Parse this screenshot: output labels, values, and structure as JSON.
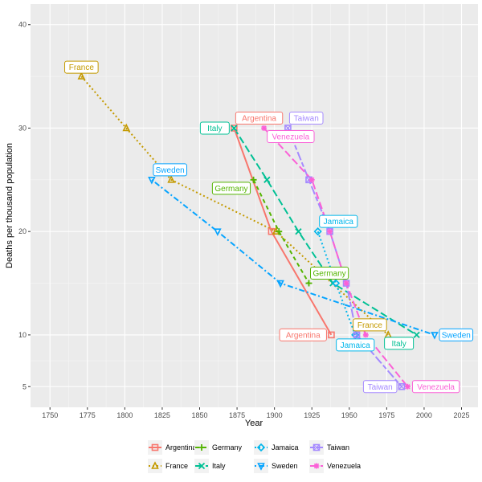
{
  "chart_data": {
    "type": "line",
    "title": "",
    "xlabel": "Year",
    "ylabel": "Deaths per thousand population",
    "xlim": [
      1737,
      2036
    ],
    "ylim": [
      3,
      42
    ],
    "xticks": [
      1750,
      1775,
      1800,
      1825,
      1850,
      1875,
      1900,
      1925,
      1950,
      1975,
      2000,
      2025
    ],
    "yticks": [
      5,
      10,
      20,
      30,
      40
    ],
    "grid": true,
    "background": "#ebebeb",
    "legend_position": "bottom",
    "series": [
      {
        "name": "Argentina",
        "color": "#f8766d",
        "dash": "solid",
        "shape": "square",
        "x": [
          1873,
          1898,
          1938
        ],
        "y": [
          30,
          20,
          10
        ]
      },
      {
        "name": "France",
        "color": "#c49a00",
        "dash": "dotted",
        "shape": "triangle-up",
        "x": [
          1771,
          1801,
          1831,
          1901,
          1976
        ],
        "y": [
          35,
          30,
          25,
          20,
          10
        ]
      },
      {
        "name": "Germany",
        "color": "#53b400",
        "dash": "dashed",
        "shape": "plus",
        "x": [
          1886,
          1903,
          1923
        ],
        "y": [
          25,
          20,
          15
        ]
      },
      {
        "name": "Italy",
        "color": "#00c094",
        "dash": "longdash",
        "shape": "cross",
        "x": [
          1873,
          1895,
          1916,
          1939,
          1995
        ],
        "y": [
          30,
          25,
          20,
          15,
          10
        ]
      },
      {
        "name": "Jamaica",
        "color": "#00b6eb",
        "dash": "dotted",
        "shape": "diamond",
        "x": [
          1929,
          1941,
          1954
        ],
        "y": [
          20,
          15,
          10
        ]
      },
      {
        "name": "Sweden",
        "color": "#06a4ff",
        "dash": "dotdash",
        "shape": "triangle-down",
        "x": [
          1818,
          1862,
          1904,
          2007
        ],
        "y": [
          25,
          20,
          15,
          10
        ]
      },
      {
        "name": "Taiwan",
        "color": "#a58aff",
        "dash": "twodash",
        "shape": "square-cross",
        "x": [
          1909,
          1923,
          1937,
          1948,
          1955,
          1985
        ],
        "y": [
          30,
          25,
          20,
          15,
          10,
          5
        ]
      },
      {
        "name": "Venezuela",
        "color": "#fb61d7",
        "dash": "longdash",
        "shape": "asterisk",
        "x": [
          1893,
          1925,
          1937,
          1948,
          1961,
          1989
        ],
        "y": [
          30,
          25,
          20,
          15,
          10,
          5
        ]
      }
    ],
    "labels": [
      {
        "text": "Argentina",
        "series": 0,
        "x": 1873,
        "y": 30,
        "pos": "above-right"
      },
      {
        "text": "Argentina",
        "series": 0,
        "x": 1938,
        "y": 10,
        "pos": "left"
      },
      {
        "text": "France",
        "series": 1,
        "x": 1771,
        "y": 35,
        "pos": "above"
      },
      {
        "text": "France",
        "series": 1,
        "x": 1976,
        "y": 10,
        "pos": "above-left"
      },
      {
        "text": "Germany",
        "series": 2,
        "x": 1886,
        "y": 25,
        "pos": "below-left"
      },
      {
        "text": "Germany",
        "series": 2,
        "x": 1923,
        "y": 15,
        "pos": "above-right"
      },
      {
        "text": "Italy",
        "series": 3,
        "x": 1873,
        "y": 30,
        "pos": "left"
      },
      {
        "text": "Italy",
        "series": 3,
        "x": 1995,
        "y": 10,
        "pos": "below-left"
      },
      {
        "text": "Jamaica",
        "series": 4,
        "x": 1929,
        "y": 20,
        "pos": "above-right"
      },
      {
        "text": "Jamaica",
        "series": 4,
        "x": 1954,
        "y": 10,
        "pos": "below"
      },
      {
        "text": "Sweden",
        "series": 5,
        "x": 1818,
        "y": 25,
        "pos": "above-right"
      },
      {
        "text": "Sweden",
        "series": 5,
        "x": 2007,
        "y": 10,
        "pos": "right"
      },
      {
        "text": "Taiwan",
        "series": 6,
        "x": 1909,
        "y": 30,
        "pos": "above-right"
      },
      {
        "text": "Taiwan",
        "series": 6,
        "x": 1985,
        "y": 5,
        "pos": "left"
      },
      {
        "text": "Venezuela",
        "series": 7,
        "x": 1893,
        "y": 30,
        "pos": "below-right"
      },
      {
        "text": "Venezuela",
        "series": 7,
        "x": 1989,
        "y": 5,
        "pos": "right"
      }
    ]
  }
}
